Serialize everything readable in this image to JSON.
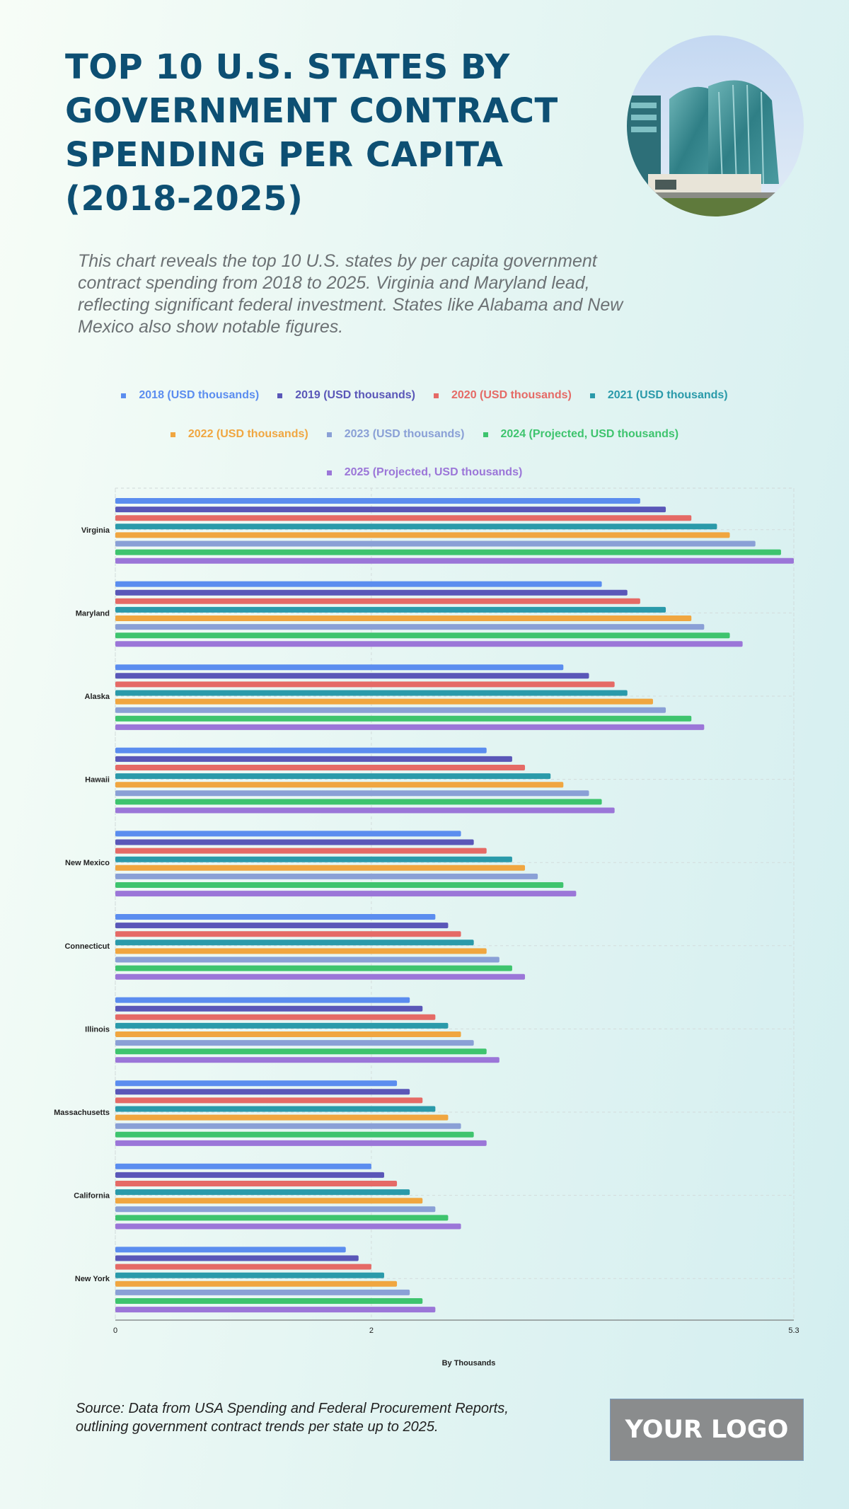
{
  "header": {
    "title": "TOP 10 U.S. STATES BY GOVERNMENT CONTRACT SPENDING PER CAPITA (2018-2025)",
    "subtitle": "This chart reveals the top 10 U.S. states by per capita government contract spending from 2018 to 2025. Virginia and Maryland lead, reflecting significant federal investment. States like Alabama and New Mexico also show notable figures."
  },
  "footer": {
    "source": "Source: Data from USA Spending and Federal Procurement Reports, outlining government contract trends per state up to 2025.",
    "logo_text": "YOUR LOGO"
  },
  "chart_data": {
    "type": "bar",
    "orientation": "horizontal",
    "title": "TOP 10 U.S. STATES BY GOVERNMENT CONTRACT SPENDING PER CAPITA (2018-2025)",
    "xlabel": "By Thousands",
    "ylabel": "",
    "xlim": [
      0,
      5.3
    ],
    "xticks": [
      0,
      2,
      5.3
    ],
    "grid": true,
    "legend_position": "top",
    "categories": [
      "Virginia",
      "Maryland",
      "Alaska",
      "Hawaii",
      "New Mexico",
      "Connecticut",
      "Illinois",
      "Massachusetts",
      "California",
      "New York"
    ],
    "series": [
      {
        "name": "2018 (USD thousands)",
        "color": "#5b8def",
        "values": [
          4.1,
          3.8,
          3.5,
          2.9,
          2.7,
          2.5,
          2.3,
          2.2,
          2.0,
          1.8
        ]
      },
      {
        "name": "2019 (USD thousands)",
        "color": "#5a57b8",
        "values": [
          4.3,
          4.0,
          3.7,
          3.1,
          2.8,
          2.6,
          2.4,
          2.3,
          2.1,
          1.9
        ]
      },
      {
        "name": "2020 (USD thousands)",
        "color": "#e56a66",
        "values": [
          4.5,
          4.1,
          3.9,
          3.2,
          2.9,
          2.7,
          2.5,
          2.4,
          2.2,
          2.0
        ]
      },
      {
        "name": "2021 (USD thousands)",
        "color": "#2a9aaa",
        "values": [
          4.7,
          4.3,
          4.0,
          3.4,
          3.1,
          2.8,
          2.6,
          2.5,
          2.3,
          2.1
        ]
      },
      {
        "name": "2022 (USD thousands)",
        "color": "#f0a640",
        "values": [
          4.8,
          4.5,
          4.2,
          3.5,
          3.2,
          2.9,
          2.7,
          2.6,
          2.4,
          2.2
        ]
      },
      {
        "name": "2023 (USD thousands)",
        "color": "#8aa0d6",
        "values": [
          5.0,
          4.6,
          4.3,
          3.7,
          3.3,
          3.0,
          2.8,
          2.7,
          2.5,
          2.3
        ]
      },
      {
        "name": "2024 (Projected, USD thousands)",
        "color": "#3ec46e",
        "values": [
          5.2,
          4.8,
          4.5,
          3.8,
          3.5,
          3.1,
          2.9,
          2.8,
          2.6,
          2.4
        ]
      },
      {
        "name": "2025 (Projected, USD thousands)",
        "color": "#9b76d8",
        "values": [
          5.3,
          4.9,
          4.6,
          3.9,
          3.6,
          3.2,
          3.0,
          2.9,
          2.7,
          2.5
        ]
      }
    ]
  }
}
